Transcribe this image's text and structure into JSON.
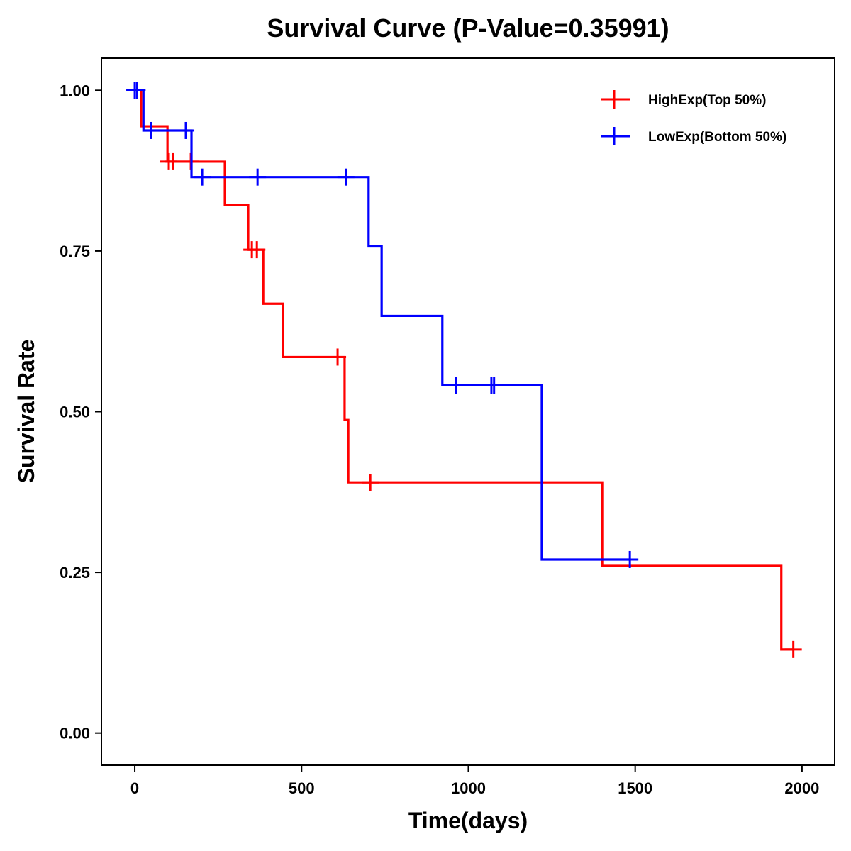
{
  "chart_data": {
    "type": "line",
    "subtype": "kaplan-meier-step",
    "title": "Survival Curve (P-Value=0.35991)",
    "xlabel": "Time(days)",
    "ylabel": "Survival Rate",
    "xlim": [
      -100,
      2098
    ],
    "ylim": [
      -0.05,
      1.05
    ],
    "xticks": [
      0,
      500,
      1000,
      1500,
      2000
    ],
    "xtick_labels": [
      "0",
      "500",
      "1000",
      "1500",
      "2000"
    ],
    "yticks": [
      0,
      0.25,
      0.5,
      0.75,
      1.0
    ],
    "ytick_labels": [
      "0.00",
      "0.25",
      "0.50",
      "0.75",
      "1.00"
    ],
    "grid": false,
    "legend_position": "top-right",
    "series": [
      {
        "name": "HighExp(Top 50%)",
        "color": "#ff0000",
        "steps": [
          [
            0,
            1.0
          ],
          [
            19,
            0.944
          ],
          [
            98,
            0.889
          ],
          [
            270,
            0.822
          ],
          [
            340,
            0.752
          ],
          [
            385,
            0.668
          ],
          [
            444,
            0.585
          ],
          [
            629,
            0.487
          ],
          [
            640,
            0.39
          ],
          [
            1401,
            0.26
          ],
          [
            1938,
            0.13
          ]
        ],
        "end_time": 1974,
        "censored": [
          [
            102,
            0.889
          ],
          [
            115,
            0.889
          ],
          [
            168,
            0.889
          ],
          [
            351,
            0.752
          ],
          [
            366,
            0.752
          ],
          [
            608,
            0.585
          ],
          [
            706,
            0.39
          ],
          [
            1974,
            0.13
          ]
        ]
      },
      {
        "name": "LowExp(Bottom 50%)",
        "color": "#0000ff",
        "steps": [
          [
            0,
            1.0
          ],
          [
            26,
            0.9375
          ],
          [
            170,
            0.865
          ],
          [
            701,
            0.757
          ],
          [
            740,
            0.649
          ],
          [
            922,
            0.541
          ],
          [
            1220,
            0.27
          ]
        ],
        "end_time": 1484,
        "censored": [
          [
            0,
            1.0
          ],
          [
            7,
            1.0
          ],
          [
            49,
            0.9375
          ],
          [
            153,
            0.9375
          ],
          [
            202,
            0.865
          ],
          [
            368,
            0.865
          ],
          [
            633,
            0.865
          ],
          [
            962,
            0.541
          ],
          [
            1069,
            0.541
          ],
          [
            1077,
            0.541
          ],
          [
            1484,
            0.27
          ]
        ]
      }
    ]
  }
}
